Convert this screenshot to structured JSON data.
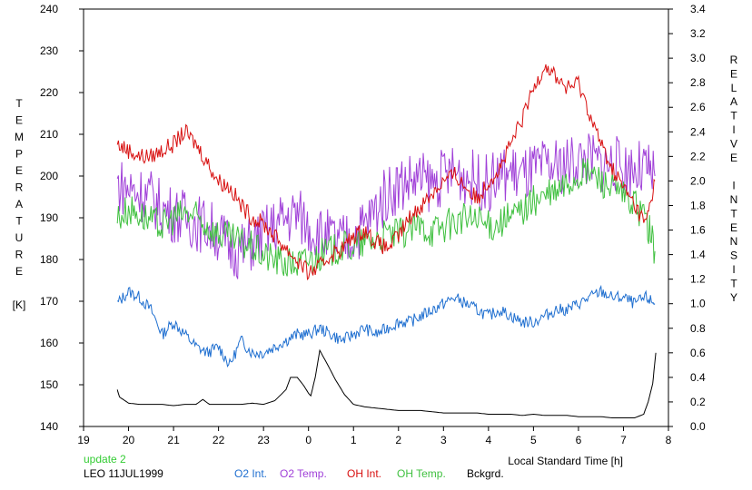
{
  "chart_data": {
    "type": "line",
    "title": "",
    "xlabel": "Local Standard Time [h]",
    "ylabel_left": [
      "T",
      "E",
      "M",
      "P",
      "E",
      "R",
      "A",
      "T",
      "U",
      "R",
      "E",
      "",
      "[K]"
    ],
    "ylabel_right": [
      "R",
      "E",
      "L",
      "A",
      "T",
      "I",
      "V",
      "E",
      "",
      "I",
      "N",
      "T",
      "E",
      "N",
      "S",
      "I",
      "T",
      "Y"
    ],
    "xlim": [
      19,
      32
    ],
    "x_ticks": [
      19,
      20,
      21,
      22,
      23,
      24,
      25,
      26,
      27,
      28,
      29,
      30,
      31,
      32
    ],
    "x_tick_labels": [
      "19",
      "20",
      "21",
      "22",
      "23",
      "0",
      "1",
      "2",
      "3",
      "4",
      "5",
      "6",
      "7",
      "8"
    ],
    "ylim_left": [
      140,
      240
    ],
    "y_left_ticks": [
      140,
      150,
      160,
      170,
      180,
      190,
      200,
      210,
      220,
      230,
      240
    ],
    "ylim_right": [
      0.0,
      3.4
    ],
    "y_right_ticks": [
      "0.0",
      "0.2",
      "0.4",
      "0.6",
      "0.8",
      "1.0",
      "1.2",
      "1.4",
      "1.6",
      "1.8",
      "2.0",
      "2.2",
      "2.4",
      "2.6",
      "2.8",
      "3.0",
      "3.2",
      "3.4"
    ],
    "annotation_update": "update 2",
    "annotation_site": "LEO 11JUL1999",
    "series": [
      {
        "name": "O2 Int.",
        "axis": "right",
        "color": "#1f6fd0",
        "x": [
          19.75,
          20.0,
          20.25,
          20.5,
          20.75,
          21.0,
          21.25,
          21.5,
          21.75,
          22.0,
          22.25,
          22.5,
          22.75,
          23.0,
          23.25,
          23.5,
          23.75,
          24.0,
          24.25,
          24.5,
          24.75,
          25.0,
          25.25,
          25.5,
          25.75,
          26.0,
          26.25,
          26.5,
          26.75,
          27.0,
          27.25,
          27.5,
          27.75,
          28.0,
          28.25,
          28.5,
          28.75,
          29.0,
          29.25,
          29.5,
          29.75,
          30.0,
          30.25,
          30.5,
          30.75,
          31.0,
          31.25,
          31.5,
          31.7
        ],
        "y": [
          1.0,
          1.1,
          1.05,
          0.95,
          0.75,
          0.85,
          0.75,
          0.65,
          0.6,
          0.65,
          0.5,
          0.7,
          0.6,
          0.6,
          0.65,
          0.7,
          0.75,
          0.75,
          0.8,
          0.75,
          0.7,
          0.75,
          0.8,
          0.75,
          0.8,
          0.85,
          0.85,
          0.9,
          0.95,
          1.0,
          1.05,
          1.0,
          0.95,
          0.9,
          0.95,
          0.9,
          0.85,
          0.85,
          0.9,
          0.95,
          0.95,
          1.0,
          1.05,
          1.1,
          1.05,
          1.05,
          1.0,
          1.05,
          1.0
        ]
      },
      {
        "name": "O2 Temp.",
        "axis": "left",
        "color": "#a040d8",
        "x": [
          19.75,
          20.0,
          20.25,
          20.5,
          20.75,
          21.0,
          21.25,
          21.5,
          21.75,
          22.0,
          22.25,
          22.5,
          22.75,
          23.0,
          23.25,
          23.5,
          23.75,
          24.0,
          24.25,
          24.5,
          24.75,
          25.0,
          25.25,
          25.5,
          25.75,
          26.0,
          26.25,
          26.5,
          26.75,
          27.0,
          27.25,
          27.5,
          27.75,
          28.0,
          28.25,
          28.5,
          28.75,
          29.0,
          29.25,
          29.5,
          29.75,
          30.0,
          30.25,
          30.5,
          30.75,
          31.0,
          31.25,
          31.5,
          31.7
        ],
        "y": [
          198,
          197,
          196,
          195,
          192,
          191,
          190,
          189,
          188,
          186,
          183,
          182,
          184,
          186,
          188,
          190,
          191,
          188,
          186,
          185,
          184,
          186,
          188,
          192,
          196,
          198,
          199,
          199,
          198,
          200,
          201,
          200,
          199,
          198,
          200,
          201,
          200,
          201,
          202,
          202,
          203,
          204,
          204,
          203,
          203,
          202,
          202,
          201,
          200
        ]
      },
      {
        "name": "OH Int.",
        "axis": "right",
        "color": "#d81010",
        "x": [
          19.75,
          20.0,
          20.25,
          20.5,
          20.75,
          21.0,
          21.25,
          21.5,
          21.75,
          22.0,
          22.25,
          22.5,
          22.75,
          23.0,
          23.25,
          23.5,
          23.75,
          24.0,
          24.25,
          24.5,
          24.75,
          25.0,
          25.25,
          25.5,
          25.75,
          26.0,
          26.25,
          26.5,
          26.75,
          27.0,
          27.25,
          27.5,
          27.75,
          28.0,
          28.25,
          28.5,
          28.75,
          29.0,
          29.25,
          29.5,
          29.75,
          30.0,
          30.25,
          30.5,
          30.75,
          31.0,
          31.25,
          31.5,
          31.7
        ],
        "y": [
          2.3,
          2.25,
          2.2,
          2.2,
          2.25,
          2.3,
          2.4,
          2.3,
          2.15,
          2.0,
          1.95,
          1.8,
          1.7,
          1.65,
          1.55,
          1.45,
          1.35,
          1.25,
          1.3,
          1.4,
          1.45,
          1.55,
          1.6,
          1.5,
          1.45,
          1.55,
          1.7,
          1.8,
          1.9,
          2.0,
          2.05,
          1.95,
          1.85,
          2.0,
          2.1,
          2.3,
          2.5,
          2.75,
          2.95,
          2.85,
          2.75,
          2.8,
          2.55,
          2.3,
          2.1,
          1.95,
          1.8,
          1.65,
          2.0
        ]
      },
      {
        "name": "OH Temp.",
        "axis": "left",
        "color": "#40c040",
        "x": [
          19.75,
          20.0,
          20.25,
          20.5,
          20.75,
          21.0,
          21.25,
          21.5,
          21.75,
          22.0,
          22.25,
          22.5,
          22.75,
          23.0,
          23.25,
          23.5,
          23.75,
          24.0,
          24.25,
          24.5,
          24.75,
          25.0,
          25.25,
          25.5,
          25.75,
          26.0,
          26.25,
          26.5,
          26.75,
          27.0,
          27.25,
          27.5,
          27.75,
          28.0,
          28.25,
          28.5,
          28.75,
          29.0,
          29.25,
          29.5,
          29.75,
          30.0,
          30.25,
          30.5,
          30.75,
          31.0,
          31.25,
          31.5,
          31.7
        ],
        "y": [
          190,
          192,
          191,
          189,
          188,
          190,
          191,
          190,
          188,
          186,
          185,
          184,
          183,
          181,
          180,
          179,
          179,
          180,
          181,
          182,
          183,
          183,
          184,
          185,
          186,
          186,
          187,
          188,
          187,
          188,
          189,
          190,
          189,
          188,
          189,
          190,
          192,
          194,
          195,
          196,
          198,
          200,
          201,
          199,
          197,
          195,
          193,
          190,
          182
        ]
      },
      {
        "name": "Bckgrd.",
        "axis": "right",
        "color": "#000000",
        "x": [
          19.75,
          19.8,
          20.0,
          20.25,
          20.5,
          20.75,
          21.0,
          21.25,
          21.5,
          21.65,
          21.8,
          22.0,
          22.25,
          22.5,
          22.75,
          23.0,
          23.25,
          23.5,
          23.6,
          23.75,
          23.9,
          24.0,
          24.05,
          24.15,
          24.25,
          24.4,
          24.6,
          24.8,
          25.0,
          25.25,
          25.5,
          25.75,
          26.0,
          26.25,
          26.5,
          26.75,
          27.0,
          27.25,
          27.5,
          27.75,
          28.0,
          28.25,
          28.5,
          28.75,
          29.0,
          29.25,
          29.5,
          29.75,
          30.0,
          30.25,
          30.5,
          30.75,
          31.0,
          31.25,
          31.45,
          31.55,
          31.65,
          31.72
        ],
        "y": [
          0.3,
          0.24,
          0.19,
          0.18,
          0.18,
          0.18,
          0.17,
          0.18,
          0.18,
          0.22,
          0.18,
          0.18,
          0.18,
          0.18,
          0.19,
          0.18,
          0.21,
          0.3,
          0.4,
          0.4,
          0.33,
          0.27,
          0.25,
          0.4,
          0.62,
          0.52,
          0.38,
          0.26,
          0.18,
          0.16,
          0.15,
          0.14,
          0.13,
          0.13,
          0.13,
          0.12,
          0.11,
          0.11,
          0.11,
          0.11,
          0.1,
          0.1,
          0.1,
          0.09,
          0.1,
          0.09,
          0.09,
          0.09,
          0.08,
          0.08,
          0.08,
          0.07,
          0.07,
          0.07,
          0.1,
          0.2,
          0.35,
          0.6
        ]
      }
    ]
  }
}
